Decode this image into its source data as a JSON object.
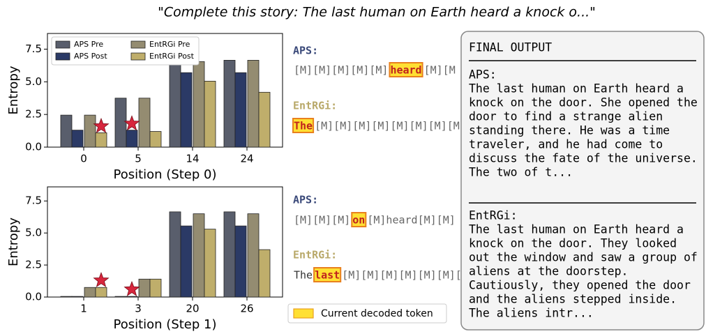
{
  "title": "\"Complete this story: The last human on Earth heard a knock o...\"",
  "chart_data": [
    {
      "type": "bar",
      "ylabel": "Entropy",
      "xlabel": "Position (Step 0)",
      "categories": [
        "0",
        "5",
        "14",
        "24"
      ],
      "series": [
        {
          "name": "APS Pre",
          "color": "#595e6c",
          "values": [
            2.45,
            3.75,
            6.55,
            6.65
          ]
        },
        {
          "name": "APS Post",
          "color": "#2b3a66",
          "values": [
            1.3,
            1.3,
            5.7,
            5.7
          ]
        },
        {
          "name": "EntRGi Pre",
          "color": "#948c71",
          "values": [
            2.45,
            3.75,
            6.55,
            6.65
          ]
        },
        {
          "name": "EntRGi Post",
          "color": "#bfae6b",
          "values": [
            1.1,
            1.2,
            5.05,
            4.2
          ]
        }
      ],
      "markers": [
        {
          "category": 0,
          "series": 3,
          "value": 1.6
        },
        {
          "category": 1,
          "series": 1,
          "value": 1.8
        }
      ],
      "marker_color": "#d7263d",
      "ylim": [
        0,
        8.7
      ],
      "yticks": [
        {
          "value": 0,
          "label": "0.0"
        },
        {
          "value": 2.5,
          "label": "2.5"
        },
        {
          "value": 5,
          "label": "5.0"
        },
        {
          "value": 7.5,
          "label": "7.5"
        }
      ],
      "legend": "upper left"
    },
    {
      "type": "bar",
      "ylabel": "Entropy",
      "xlabel": "Position (Step 1)",
      "categories": [
        "1",
        "3",
        "20",
        "26"
      ],
      "series": [
        {
          "color": "#595e6c",
          "values": [
            0.05,
            0.05,
            6.65,
            6.65
          ]
        },
        {
          "color": "#2b3a66",
          "values": [
            0.05,
            0.05,
            5.55,
            5.55
          ]
        },
        {
          "color": "#948c71",
          "values": [
            0.75,
            1.4,
            6.5,
            6.5
          ]
        },
        {
          "color": "#bfae6b",
          "values": [
            0.75,
            1.4,
            5.3,
            3.7
          ]
        }
      ],
      "markers": [
        {
          "category": 0,
          "series": 3,
          "value": 1.3
        },
        {
          "category": 1,
          "series": 1,
          "value": 0.6
        }
      ],
      "marker_color": "#d7263d",
      "ylim": [
        0,
        8.6
      ],
      "yticks": [
        {
          "value": 0,
          "label": "0.0"
        },
        {
          "value": 2.5,
          "label": "2.5"
        },
        {
          "value": 5,
          "label": "5.0"
        },
        {
          "value": 7.5,
          "label": "7.5"
        }
      ]
    }
  ],
  "token_panels": [
    [
      {
        "label": "APS:",
        "segments": [
          {
            "text": "[M][M][M][M][M]"
          },
          {
            "text": "heard",
            "highlight": true
          },
          {
            "text": "[M][M"
          }
        ]
      },
      {
        "label": "EntRGi:",
        "segments": [
          {
            "text": "The",
            "highlight": true
          },
          {
            "text": "[M][M][M][M][M][M][M][M]"
          }
        ]
      }
    ],
    [
      {
        "label": "APS:",
        "segments": [
          {
            "text": "[M][M][M]"
          },
          {
            "text": "on",
            "highlight": true
          },
          {
            "text": "[M]heard[M][M]"
          }
        ]
      },
      {
        "label": "EntRGi:",
        "segments": [
          {
            "text": "The"
          },
          {
            "text": "last",
            "highlight": true
          },
          {
            "text": "[M][M][M][M][M][M][M]"
          }
        ]
      }
    ]
  ],
  "highlight_legend": "Current decoded token",
  "final_output": {
    "title": "FINAL OUTPUT",
    "sections": [
      {
        "label": "APS:",
        "lines": [
          "The last human on Earth heard a",
          "knock on the door. She opened the",
          "door to find a strange alien",
          "standing there. He was a time",
          "traveler, and he had come to",
          "discuss the fate of the universe.",
          "The two of t..."
        ]
      },
      {
        "label": "EntRGi:",
        "lines": [
          "The last human on Earth heard a",
          "knock on the door. They looked",
          "out the window and saw a group of",
          "aliens at the doorstep.",
          "Cautiously, they opened the door",
          "and the aliens stepped inside.",
          "The aliens intr..."
        ]
      }
    ]
  }
}
